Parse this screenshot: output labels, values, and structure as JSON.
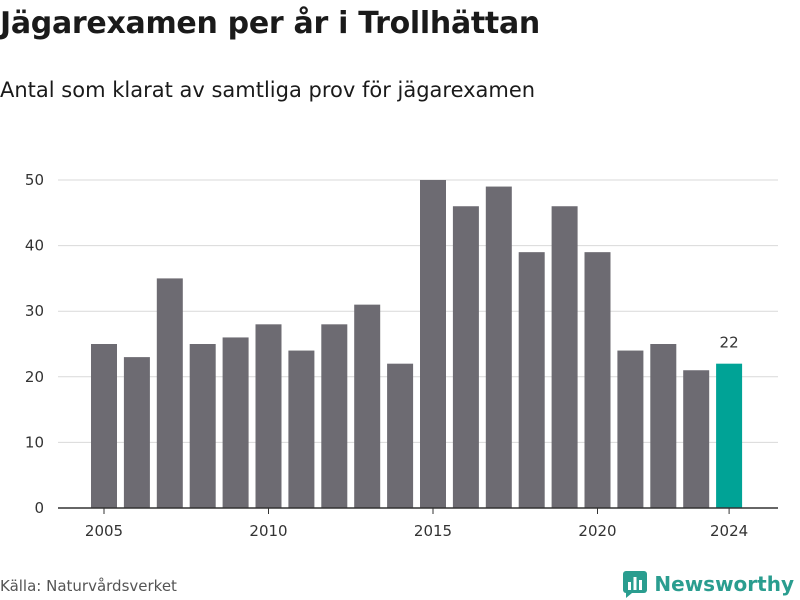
{
  "title": "Jägarexamen per år i Trollhättan",
  "subtitle": "Antal som klarat av samtliga prov för jägarexamen",
  "source": "Källa: Naturvårdsverket",
  "brand": "Newsworthy",
  "colors": {
    "bar": "#6d6b72",
    "highlight": "#00a396",
    "grid": "#d9d9d9",
    "axis": "#333333",
    "brand": "#2a9d8f"
  },
  "chart_data": {
    "type": "bar",
    "categories": [
      "2005",
      "2006",
      "2007",
      "2008",
      "2009",
      "2010",
      "2011",
      "2012",
      "2013",
      "2014",
      "2015",
      "2016",
      "2017",
      "2018",
      "2019",
      "2020",
      "2021",
      "2022",
      "2023",
      "2024"
    ],
    "values": [
      25,
      23,
      35,
      25,
      26,
      28,
      24,
      28,
      31,
      22,
      50,
      46,
      49,
      39,
      46,
      39,
      24,
      25,
      21,
      22
    ],
    "x_ticks": [
      "2005",
      "2010",
      "2015",
      "2020",
      "2024"
    ],
    "y_ticks": [
      0,
      10,
      20,
      30,
      40,
      50
    ],
    "ylim": [
      0,
      50
    ],
    "highlight_category": "2024",
    "data_labels": [
      {
        "category": "2024",
        "text": "22"
      }
    ],
    "grid": true,
    "legend": "none"
  }
}
